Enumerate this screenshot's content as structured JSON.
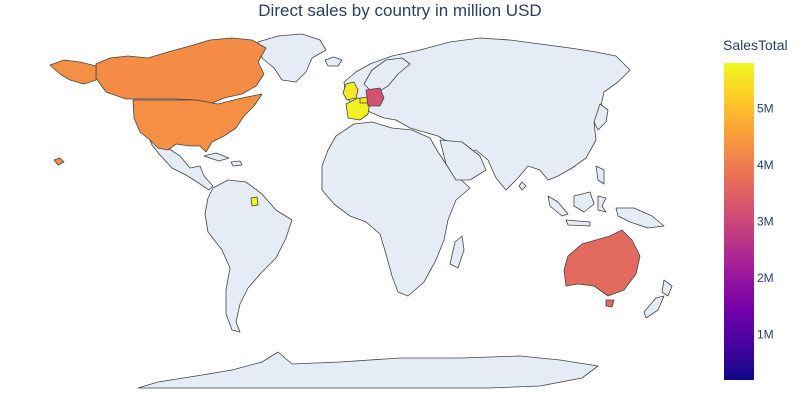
{
  "chart_data": {
    "type": "choropleth",
    "title": "Direct sales by country in million USD",
    "colorbar": {
      "title": "SalesTotal",
      "range": [
        0.2,
        5.8
      ],
      "ticks": [
        {
          "value": 1,
          "label": "1M"
        },
        {
          "value": 2,
          "label": "2M"
        },
        {
          "value": 3,
          "label": "3M"
        },
        {
          "value": 4,
          "label": "4M"
        },
        {
          "value": 5,
          "label": "5M"
        }
      ],
      "colorscale": [
        "#0d0887",
        "#46039f",
        "#7201a8",
        "#9c179e",
        "#bd3786",
        "#d8576b",
        "#ed7953",
        "#fb9f3a",
        "#fdca26",
        "#f0f921"
      ]
    },
    "countries": [
      {
        "name": "Canada",
        "value": 4.25
      },
      {
        "name": "United States",
        "value": 4.3
      },
      {
        "name": "United Kingdom",
        "value": 5.6
      },
      {
        "name": "France",
        "value": 5.7
      },
      {
        "name": "Belgium",
        "value": 5.5
      },
      {
        "name": "Germany",
        "value": 3.2
      },
      {
        "name": "French Guiana",
        "value": 5.7
      },
      {
        "name": "Australia",
        "value": 3.65
      }
    ],
    "land_color": "#e5ecf6",
    "border_color": "#444444"
  }
}
